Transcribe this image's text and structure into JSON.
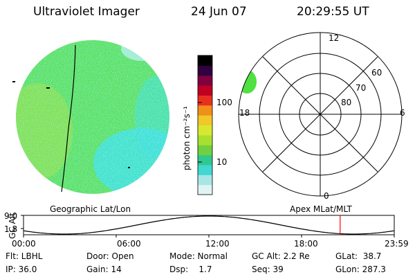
{
  "header": {
    "instrument": "Ultraviolet Imager",
    "date": "24 Jun 07",
    "time": "20:29:55 UT"
  },
  "colorbar": {
    "label": "photon cm⁻²s⁻¹",
    "ticks": [
      "100",
      "10"
    ],
    "scale": "log",
    "colors": [
      "#e0f4f4",
      "#a8e6e6",
      "#40d8d0",
      "#30c890",
      "#70d040",
      "#a8e030",
      "#d8e830",
      "#f0c828",
      "#f09018",
      "#e83020",
      "#c00020",
      "#800040",
      "#300040",
      "#000000"
    ]
  },
  "earth_image": {
    "fill_color": "#60e060",
    "cyan_color": "#40e0e0",
    "terminator_color": "#000000"
  },
  "polar_grid": {
    "lat_labels": [
      "60",
      "70",
      "80"
    ],
    "mlt_labels": {
      "top": "12",
      "bottom": "0",
      "left": "18",
      "right": "6"
    },
    "aurora_color": "#50e040"
  },
  "timeline": {
    "left_label": "Geographic Lat/Lon",
    "right_label": "Apex MLat/MLT",
    "axis_label": "GC Alt",
    "y_ticks": [
      "9.0",
      "1.8"
    ],
    "x_ticks": [
      "00:00",
      "06:00",
      "12:00",
      "18:00",
      "23:59"
    ],
    "current_time": "20:29:55",
    "marker_color": "#ff0000"
  },
  "info": {
    "filter": "Flt: LBHL",
    "door": "Door: Open",
    "mode": "Mode: Normal",
    "gc_alt": "GC Alt: 2.2 Re",
    "glat": "GLat:  38.7",
    "ip": "IP: 36.0",
    "gain": "Gain: 14",
    "dsp": "Dsp:    1.7",
    "seq": "Seq: 39",
    "glon": "GLon: 287.3"
  }
}
